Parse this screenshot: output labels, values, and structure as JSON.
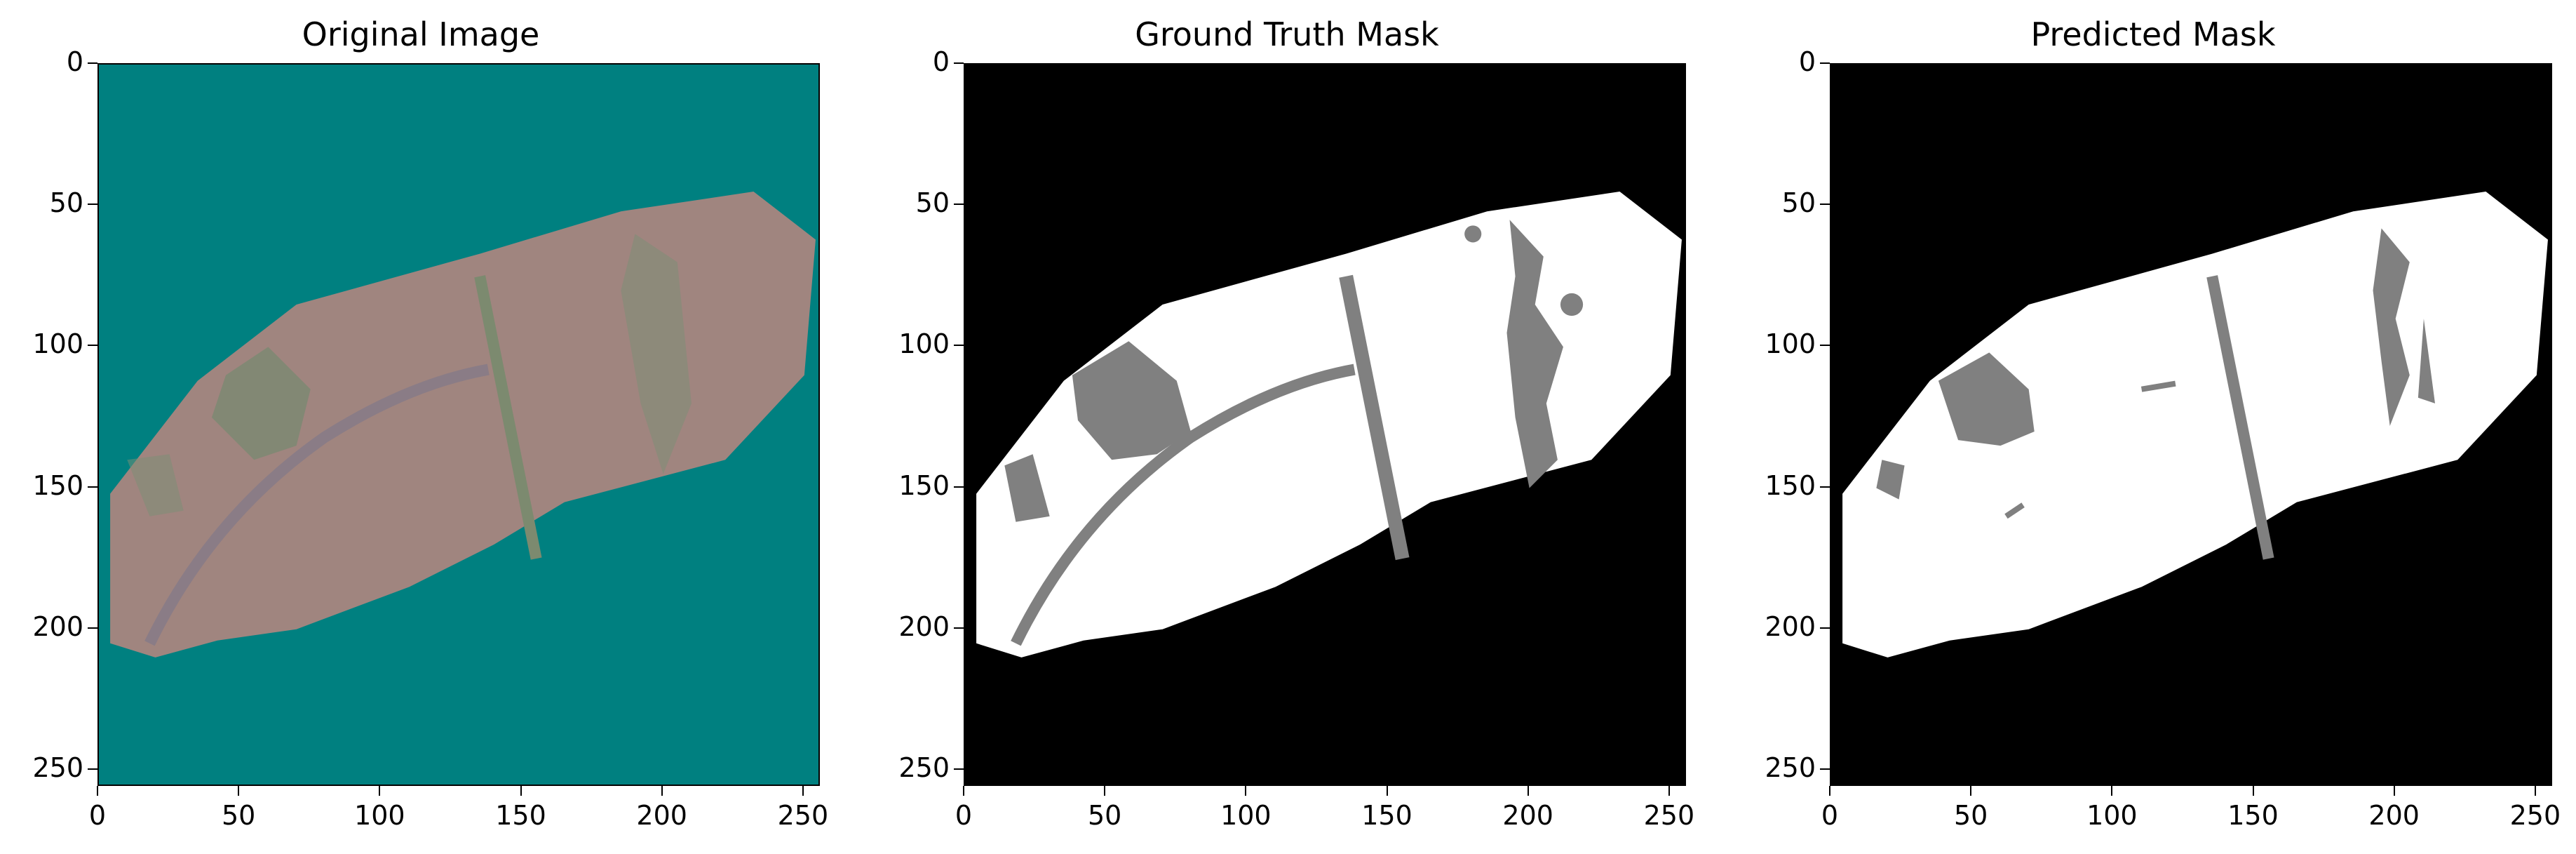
{
  "figure": {
    "panels": [
      {
        "title": "Original Image"
      },
      {
        "title": "Ground Truth Mask"
      },
      {
        "title": "Predicted Mask"
      }
    ],
    "axes": {
      "x_ticks": [
        "0",
        "50",
        "100",
        "150",
        "200",
        "250"
      ],
      "y_ticks": [
        "0",
        "50",
        "100",
        "150",
        "200",
        "250"
      ],
      "x_range": [
        0,
        256
      ],
      "y_range": [
        0,
        256
      ]
    },
    "colors": {
      "background_teal": "#008080",
      "leaf_pink": "#a0857f",
      "mask_white": "#ffffff",
      "mask_black": "#000000",
      "mask_gray": "#808080"
    }
  }
}
